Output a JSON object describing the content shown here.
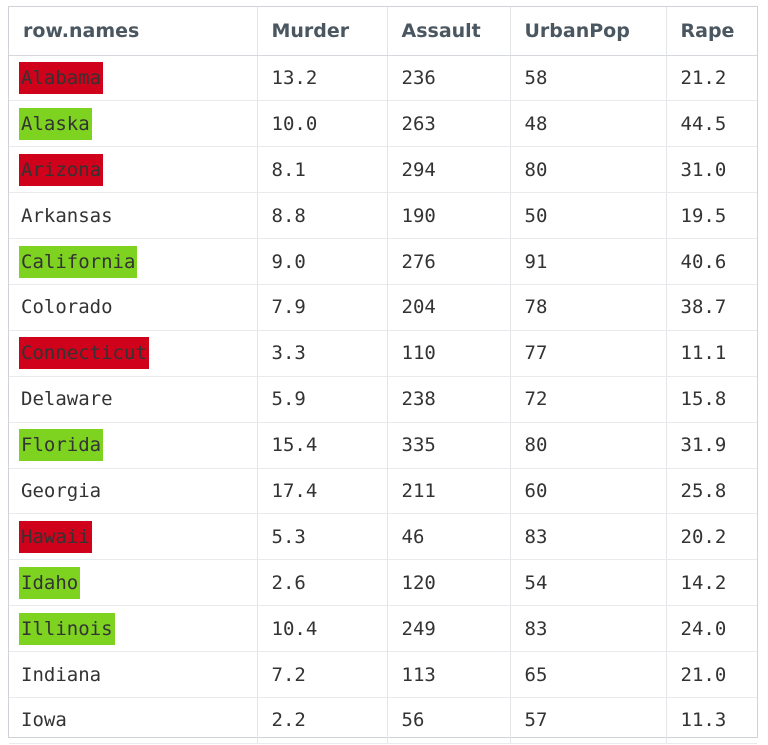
{
  "table": {
    "columns": [
      "row.names",
      "Murder",
      "Assault",
      "UrbanPop",
      "Rape"
    ],
    "rows": [
      {
        "name": "Alabama",
        "murder": "13.2",
        "assault": "236",
        "urbanpop": "58",
        "rape": "21.2",
        "highlight": "#d0021b"
      },
      {
        "name": "Alaska",
        "murder": "10.0",
        "assault": "263",
        "urbanpop": "48",
        "rape": "44.5",
        "highlight": "#7ed321"
      },
      {
        "name": "Arizona",
        "murder": "8.1",
        "assault": "294",
        "urbanpop": "80",
        "rape": "31.0",
        "highlight": "#d0021b"
      },
      {
        "name": "Arkansas",
        "murder": "8.8",
        "assault": "190",
        "urbanpop": "50",
        "rape": "19.5",
        "highlight": ""
      },
      {
        "name": "California",
        "murder": "9.0",
        "assault": "276",
        "urbanpop": "91",
        "rape": "40.6",
        "highlight": "#7ed321"
      },
      {
        "name": "Colorado",
        "murder": "7.9",
        "assault": "204",
        "urbanpop": "78",
        "rape": "38.7",
        "highlight": ""
      },
      {
        "name": "Connecticut",
        "murder": "3.3",
        "assault": "110",
        "urbanpop": "77",
        "rape": "11.1",
        "highlight": "#d0021b"
      },
      {
        "name": "Delaware",
        "murder": "5.9",
        "assault": "238",
        "urbanpop": "72",
        "rape": "15.8",
        "highlight": ""
      },
      {
        "name": "Florida",
        "murder": "15.4",
        "assault": "335",
        "urbanpop": "80",
        "rape": "31.9",
        "highlight": "#7ed321"
      },
      {
        "name": "Georgia",
        "murder": "17.4",
        "assault": "211",
        "urbanpop": "60",
        "rape": "25.8",
        "highlight": ""
      },
      {
        "name": "Hawaii",
        "murder": "5.3",
        "assault": "46",
        "urbanpop": "83",
        "rape": "20.2",
        "highlight": "#d0021b"
      },
      {
        "name": "Idaho",
        "murder": "2.6",
        "assault": "120",
        "urbanpop": "54",
        "rape": "14.2",
        "highlight": "#7ed321"
      },
      {
        "name": "Illinois",
        "murder": "10.4",
        "assault": "249",
        "urbanpop": "83",
        "rape": "24.0",
        "highlight": "#7ed321"
      },
      {
        "name": "Indiana",
        "murder": "7.2",
        "assault": "113",
        "urbanpop": "65",
        "rape": "21.0",
        "highlight": ""
      },
      {
        "name": "Iowa",
        "murder": "2.2",
        "assault": "56",
        "urbanpop": "57",
        "rape": "11.3",
        "highlight": ""
      }
    ]
  }
}
